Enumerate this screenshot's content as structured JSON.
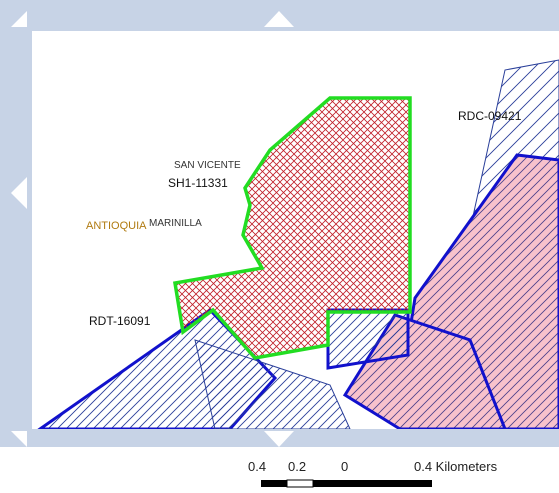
{
  "map": {
    "labels": {
      "san_vicente": "SAN VICENTE",
      "sh1": "SH1-11331",
      "antioquia": "ANTIOQUIA",
      "marinilla": "MARINILLA",
      "rdc": "RDC-09421",
      "rdt": "RDT-16091"
    },
    "colors": {
      "frame": "#c7d3e6",
      "arrow": "#ffffff",
      "green_outline": "#22dd22",
      "red_hatch": "#c0202a",
      "blue_outline": "#1111cc",
      "blue_hatch": "#2a3f9a",
      "pink_fill": "#f8c2cc",
      "antioquia_label": "#b07a10"
    },
    "pan_arrows": [
      "pan-up-arrow",
      "pan-down-arrow",
      "pan-left-arrow",
      "pan-right-arrow"
    ]
  },
  "scalebar": {
    "ticks": [
      "0.4",
      "0.2",
      "0",
      "0.4 Kilometers"
    ]
  }
}
